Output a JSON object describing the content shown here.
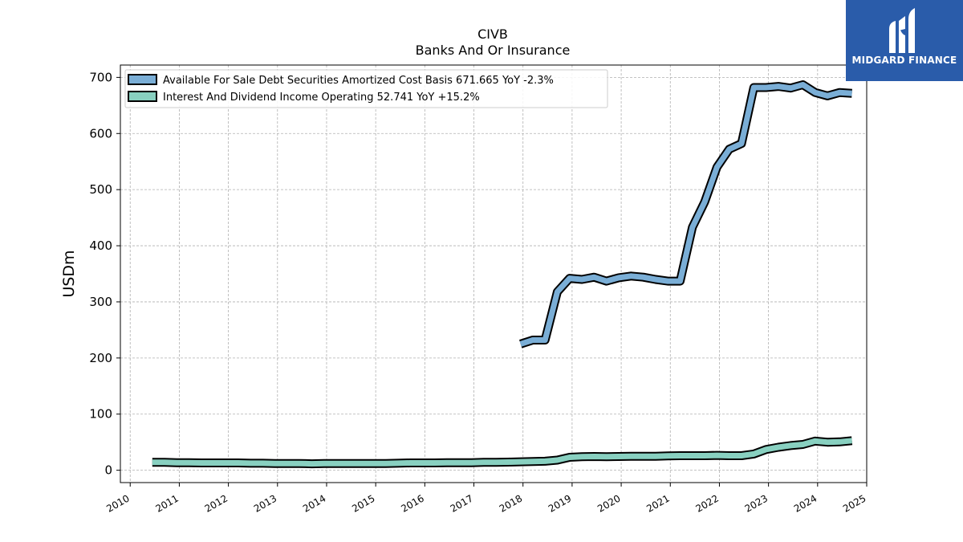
{
  "header": {
    "title": "CIVB",
    "subtitle": "Banks And Or Insurance"
  },
  "brand": {
    "name": "MIDGARD FINANCE",
    "color": "#2a5caa",
    "icon": "midgard-logo-icon"
  },
  "chart_data": {
    "type": "line",
    "ylabel": "USDm",
    "xlabel": "",
    "xlim": [
      2009.8,
      2025.0
    ],
    "ylim": [
      -22,
      722
    ],
    "xticks": [
      2010,
      2011,
      2012,
      2013,
      2014,
      2015,
      2016,
      2017,
      2018,
      2019,
      2020,
      2021,
      2022,
      2023,
      2024,
      2025
    ],
    "yticks": [
      0,
      100,
      200,
      300,
      400,
      500,
      600,
      700
    ],
    "grid": true,
    "legend_position": "top-left",
    "series": [
      {
        "name": "Available For Sale Debt Securities Amortized Cost Basis  671.665 YoY -2.3%",
        "color": "#7aaed6",
        "x": [
          2017.95,
          2018.2,
          2018.45,
          2018.7,
          2018.95,
          2019.2,
          2019.45,
          2019.7,
          2019.95,
          2020.2,
          2020.45,
          2020.7,
          2020.95,
          2021.2,
          2021.45,
          2021.7,
          2021.95,
          2022.2,
          2022.45,
          2022.7,
          2022.95,
          2023.2,
          2023.45,
          2023.7,
          2023.95,
          2024.2,
          2024.45,
          2024.7
        ],
        "y": [
          225,
          232,
          232,
          318,
          342,
          340,
          344,
          337,
          343,
          346,
          344,
          340,
          337,
          337,
          433,
          478,
          540,
          572,
          582,
          682,
          682,
          684,
          681,
          687,
          673,
          667,
          673,
          671.665
        ]
      },
      {
        "name": "Interest And Dividend Income Operating  52.741 YoY +15.2%",
        "color": "#88d0c0",
        "x": [
          2010.45,
          2010.7,
          2010.95,
          2011.2,
          2011.45,
          2011.7,
          2011.95,
          2012.2,
          2012.45,
          2012.7,
          2012.95,
          2013.2,
          2013.45,
          2013.7,
          2013.95,
          2014.2,
          2014.45,
          2014.7,
          2014.95,
          2015.2,
          2015.45,
          2015.7,
          2015.95,
          2016.2,
          2016.45,
          2016.7,
          2016.95,
          2017.2,
          2017.45,
          2017.7,
          2017.95,
          2018.2,
          2018.45,
          2018.7,
          2018.95,
          2019.2,
          2019.45,
          2019.7,
          2019.95,
          2020.2,
          2020.45,
          2020.7,
          2020.95,
          2021.2,
          2021.45,
          2021.7,
          2021.95,
          2022.2,
          2022.45,
          2022.7,
          2022.95,
          2023.2,
          2023.45,
          2023.7,
          2023.95,
          2024.2,
          2024.45,
          2024.7
        ],
        "y": [
          14,
          14,
          13.5,
          13.5,
          13,
          13,
          13,
          13,
          12.5,
          12.5,
          12,
          12,
          12,
          11.5,
          12,
          12,
          12,
          12,
          12,
          12,
          12.5,
          13,
          13,
          13,
          13.5,
          13.5,
          13.5,
          14,
          14,
          14.5,
          15,
          15.5,
          16,
          18,
          23,
          24,
          24.5,
          24,
          24.5,
          25,
          25,
          25,
          25.5,
          26,
          26,
          26,
          26.5,
          26,
          26,
          29,
          37,
          41,
          44,
          46,
          52,
          50,
          50.5,
          52.741
        ]
      }
    ]
  }
}
